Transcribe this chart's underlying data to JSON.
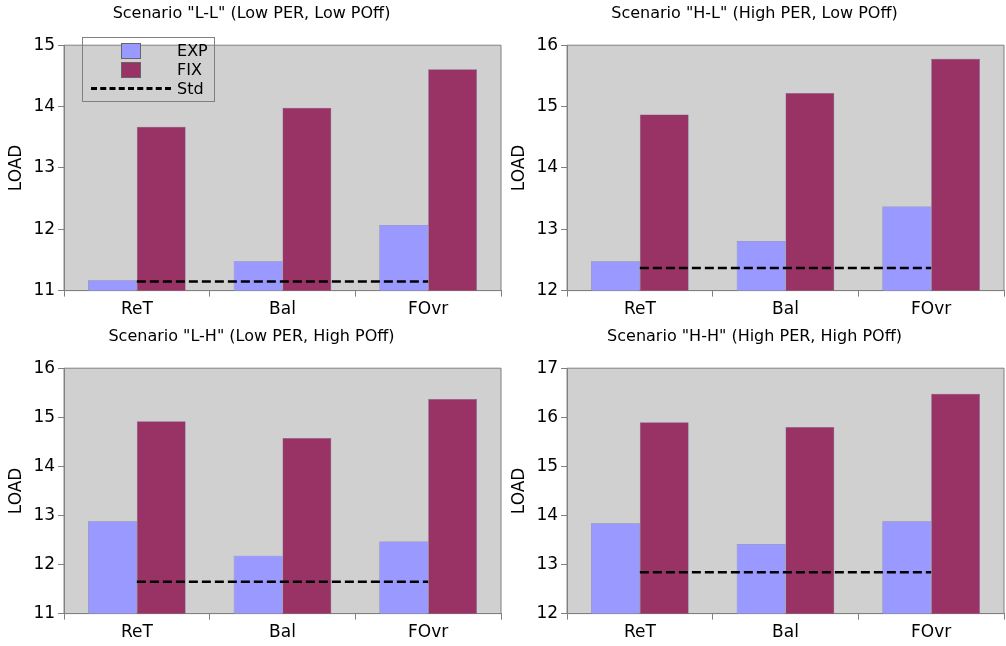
{
  "chart_data": [
    {
      "type": "bar",
      "title": "Scenario \"L-L\" (Low PER, Low POff)",
      "ylabel": "LOAD",
      "categories": [
        "ReT",
        "Bal",
        "FOvr"
      ],
      "series": [
        {
          "name": "EXP",
          "color": "#9999ff",
          "values": [
            11.17,
            11.48,
            12.07
          ]
        },
        {
          "name": "FIX",
          "color": "#993366",
          "values": [
            13.67,
            13.98,
            14.61
          ]
        },
        {
          "name": "Std",
          "type": "line",
          "color": "#000000",
          "line_style": "dashed",
          "marker": "none",
          "values": [
            11.15,
            11.15,
            11.15
          ]
        }
      ],
      "ylim": [
        11,
        15
      ],
      "yticks": [
        11,
        12,
        13,
        14,
        15
      ],
      "grid": false,
      "legend": "top left"
    },
    {
      "type": "bar",
      "title": "Scenario \"H-L\" (High PER, Low POff)",
      "ylabel": "LOAD",
      "categories": [
        "ReT",
        "Bal",
        "FOvr"
      ],
      "series": [
        {
          "color": "#9999ff",
          "values": [
            12.48,
            12.81,
            13.37
          ]
        },
        {
          "color": "#993366",
          "values": [
            14.87,
            15.22,
            15.78
          ]
        },
        {
          "type": "line",
          "color": "#000000",
          "line_style": "dashed",
          "marker": "none",
          "values": [
            12.37,
            12.37,
            12.37
          ]
        }
      ],
      "ylim": [
        12,
        16
      ],
      "yticks": [
        12,
        13,
        14,
        15,
        16
      ],
      "grid": false,
      "legend": false
    },
    {
      "type": "bar",
      "title": "Scenario \"L-H\" (Low PER, High POff)",
      "ylabel": "LOAD",
      "categories": [
        "ReT",
        "Bal",
        "FOvr"
      ],
      "series": [
        {
          "color": "#9999ff",
          "values": [
            12.88,
            12.18,
            12.47
          ]
        },
        {
          "color": "#993366",
          "values": [
            14.92,
            14.58,
            15.37
          ]
        },
        {
          "type": "line",
          "color": "#000000",
          "line_style": "dashed",
          "marker": "none",
          "values": [
            11.65,
            11.65,
            11.65
          ]
        }
      ],
      "ylim": [
        11,
        16
      ],
      "yticks": [
        11,
        12,
        13,
        14,
        15,
        16
      ],
      "grid": false,
      "legend": false
    },
    {
      "type": "bar",
      "title": "Scenario \"H-H\" (High PER, High POff)",
      "ylabel": "LOAD",
      "categories": [
        "ReT",
        "Bal",
        "FOvr"
      ],
      "series": [
        {
          "color": "#9999ff",
          "values": [
            13.84,
            13.42,
            13.88
          ]
        },
        {
          "color": "#993366",
          "values": [
            15.9,
            15.8,
            16.48
          ]
        },
        {
          "type": "line",
          "color": "#000000",
          "line_style": "dashed",
          "marker": "none",
          "values": [
            12.84,
            12.84,
            12.84
          ]
        }
      ],
      "ylim": [
        12,
        17
      ],
      "yticks": [
        12,
        13,
        14,
        15,
        16,
        17
      ],
      "grid": false,
      "legend": false
    }
  ]
}
